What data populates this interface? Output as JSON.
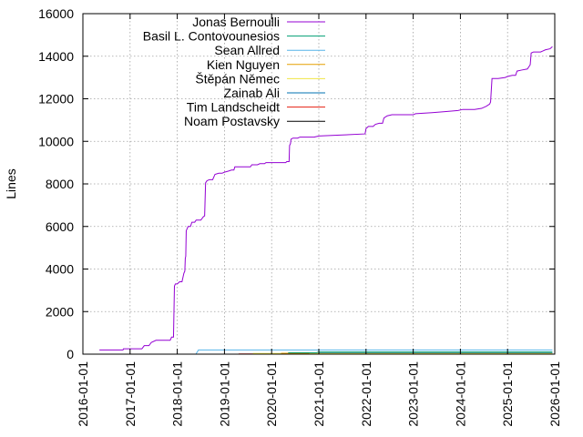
{
  "chart_data": {
    "type": "line",
    "title": "",
    "xlabel": "",
    "ylabel": "Lines",
    "x_tick_labels": [
      "2016-01-01",
      "2017-01-01",
      "2018-01-01",
      "2019-01-01",
      "2020-01-01",
      "2021-01-01",
      "2022-01-01",
      "2023-01-01",
      "2024-01-01",
      "2025-01-01",
      "2026-01-01"
    ],
    "y_ticks": [
      0,
      2000,
      4000,
      6000,
      8000,
      10000,
      12000,
      14000,
      16000
    ],
    "xlim": [
      2016.0,
      2026.0
    ],
    "ylim": [
      0,
      16000
    ],
    "grid": true,
    "legend_position": "top-left",
    "series": [
      {
        "name": "Jonas Bernoulli",
        "color": "#9400d3",
        "points": [
          [
            2016.35,
            200
          ],
          [
            2016.85,
            200
          ],
          [
            2016.86,
            250
          ],
          [
            2017.25,
            250
          ],
          [
            2017.3,
            400
          ],
          [
            2017.4,
            400
          ],
          [
            2017.45,
            550
          ],
          [
            2017.55,
            650
          ],
          [
            2017.85,
            650
          ],
          [
            2017.88,
            800
          ],
          [
            2017.92,
            800
          ],
          [
            2017.94,
            3200
          ],
          [
            2017.96,
            3300
          ],
          [
            2018.0,
            3300
          ],
          [
            2018.05,
            3400
          ],
          [
            2018.1,
            3400
          ],
          [
            2018.14,
            3800
          ],
          [
            2018.16,
            3900
          ],
          [
            2018.17,
            4500
          ],
          [
            2018.18,
            4600
          ],
          [
            2018.19,
            5800
          ],
          [
            2018.21,
            5900
          ],
          [
            2018.23,
            6000
          ],
          [
            2018.28,
            6000
          ],
          [
            2018.31,
            6200
          ],
          [
            2018.37,
            6200
          ],
          [
            2018.4,
            6300
          ],
          [
            2018.5,
            6300
          ],
          [
            2018.55,
            6450
          ],
          [
            2018.58,
            6500
          ],
          [
            2018.6,
            8050
          ],
          [
            2018.63,
            8150
          ],
          [
            2018.68,
            8200
          ],
          [
            2018.75,
            8200
          ],
          [
            2018.8,
            8450
          ],
          [
            2018.88,
            8500
          ],
          [
            2018.95,
            8500
          ],
          [
            2019.0,
            8550
          ],
          [
            2019.08,
            8600
          ],
          [
            2019.15,
            8650
          ],
          [
            2019.2,
            8650
          ],
          [
            2019.22,
            8800
          ],
          [
            2019.55,
            8800
          ],
          [
            2019.58,
            8900
          ],
          [
            2019.7,
            8900
          ],
          [
            2019.75,
            8950
          ],
          [
            2019.85,
            8950
          ],
          [
            2019.88,
            9000
          ],
          [
            2020.3,
            9000
          ],
          [
            2020.32,
            9050
          ],
          [
            2020.37,
            9050
          ],
          [
            2020.38,
            9800
          ],
          [
            2020.4,
            9900
          ],
          [
            2020.41,
            10100
          ],
          [
            2020.45,
            10150
          ],
          [
            2020.55,
            10150
          ],
          [
            2020.6,
            10200
          ],
          [
            2020.9,
            10200
          ],
          [
            2021.0,
            10250
          ],
          [
            2021.5,
            10300
          ],
          [
            2021.98,
            10350
          ],
          [
            2022.0,
            10600
          ],
          [
            2022.05,
            10700
          ],
          [
            2022.15,
            10700
          ],
          [
            2022.2,
            10800
          ],
          [
            2022.28,
            10850
          ],
          [
            2022.35,
            10850
          ],
          [
            2022.38,
            11100
          ],
          [
            2022.45,
            11200
          ],
          [
            2022.55,
            11250
          ],
          [
            2023.0,
            11250
          ],
          [
            2023.05,
            11300
          ],
          [
            2023.4,
            11350
          ],
          [
            2023.7,
            11400
          ],
          [
            2023.95,
            11450
          ],
          [
            2024.05,
            11500
          ],
          [
            2024.3,
            11500
          ],
          [
            2024.45,
            11550
          ],
          [
            2024.55,
            11650
          ],
          [
            2024.62,
            11750
          ],
          [
            2024.64,
            11850
          ],
          [
            2024.67,
            12950
          ],
          [
            2024.8,
            12950
          ],
          [
            2024.95,
            13000
          ],
          [
            2025.0,
            13050
          ],
          [
            2025.1,
            13100
          ],
          [
            2025.17,
            13100
          ],
          [
            2025.2,
            13300
          ],
          [
            2025.3,
            13350
          ],
          [
            2025.42,
            13400
          ],
          [
            2025.48,
            13600
          ],
          [
            2025.5,
            14150
          ],
          [
            2025.55,
            14200
          ],
          [
            2025.7,
            14200
          ],
          [
            2025.75,
            14250
          ],
          [
            2025.8,
            14300
          ],
          [
            2025.9,
            14350
          ],
          [
            2025.95,
            14450
          ]
        ]
      },
      {
        "name": "Basil L. Contovounesios",
        "color": "#009e73",
        "points": [
          [
            2020.35,
            70
          ],
          [
            2020.95,
            70
          ],
          [
            2021.0,
            100
          ],
          [
            2025.95,
            100
          ]
        ]
      },
      {
        "name": "Sean Allred",
        "color": "#56b4e9",
        "points": [
          [
            2018.4,
            20
          ],
          [
            2018.45,
            200
          ],
          [
            2025.95,
            200
          ]
        ]
      },
      {
        "name": "Kien Nguyen",
        "color": "#e69f00",
        "points": [
          [
            2020.2,
            40
          ],
          [
            2020.8,
            40
          ]
        ]
      },
      {
        "name": "Štěpán Němec",
        "color": "#f0e442",
        "points": [
          [
            2019.6,
            30
          ],
          [
            2025.95,
            30
          ]
        ]
      },
      {
        "name": "Zainab Ali",
        "color": "#0072b2",
        "points": [
          [
            2021.0,
            60
          ],
          [
            2025.95,
            60
          ]
        ]
      },
      {
        "name": "Tim Landscheidt",
        "color": "#e51e10",
        "points": [
          [
            2019.3,
            10
          ],
          [
            2025.95,
            10
          ]
        ]
      },
      {
        "name": "Noam Postavsky",
        "color": "#000000",
        "points": [
          [
            2020.1,
            15
          ],
          [
            2025.95,
            15
          ]
        ]
      }
    ]
  }
}
